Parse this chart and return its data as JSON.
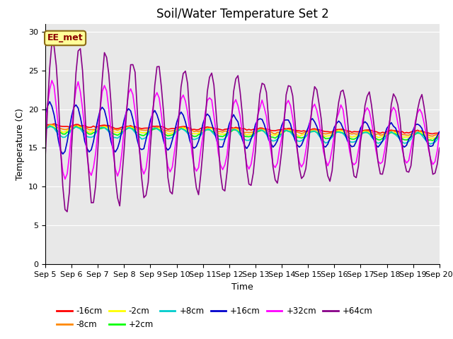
{
  "title": "Soil/Water Temperature Set 2",
  "xlabel": "Time",
  "ylabel": "Temperature (C)",
  "ylim": [
    0,
    31
  ],
  "yticks": [
    0,
    5,
    10,
    15,
    20,
    25,
    30
  ],
  "x_tick_labels": [
    "Sep 5",
    "Sep 6",
    "Sep 7",
    "Sep 8",
    "Sep 9",
    "Sep 10",
    "Sep 11",
    "Sep 12",
    "Sep 13",
    "Sep 14",
    "Sep 15",
    "Sep 16",
    "Sep 17",
    "Sep 18",
    "Sep 19",
    "Sep 20"
  ],
  "series": {
    "-16cm": {
      "color": "#FF0000"
    },
    "-8cm": {
      "color": "#FF8800"
    },
    "-2cm": {
      "color": "#FFFF00"
    },
    "+2cm": {
      "color": "#00FF00"
    },
    "+8cm": {
      "color": "#00CCCC"
    },
    "+16cm": {
      "color": "#0000CC"
    },
    "+32cm": {
      "color": "#FF00FF"
    },
    "+64cm": {
      "color": "#880088"
    }
  },
  "annotation_text": "EE_met",
  "background_color": "#E8E8E8",
  "title_fontsize": 12,
  "label_fontsize": 9,
  "tick_fontsize": 8
}
